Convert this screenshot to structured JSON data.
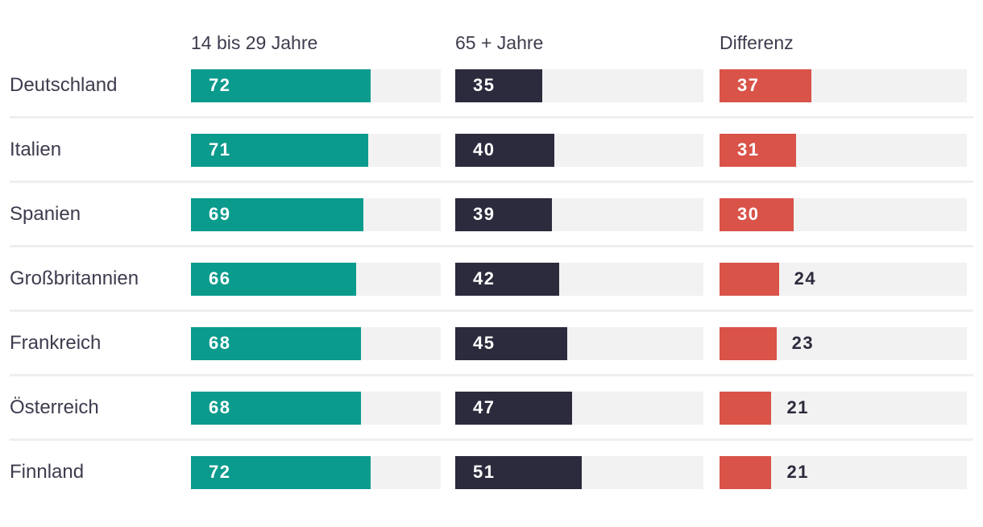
{
  "chart_data": {
    "type": "bar",
    "orientation": "horizontal",
    "title": "",
    "categories": [
      "Deutschland",
      "Italien",
      "Spanien",
      "Großbritannien",
      "Frankreich",
      "Österreich",
      "Finnland"
    ],
    "series": [
      {
        "name": "14 bis 29 Jahre",
        "color": "#0a9b8d",
        "values": [
          72,
          71,
          69,
          66,
          68,
          68,
          72
        ]
      },
      {
        "name": "65 + Jahre",
        "color": "#2b2b3d",
        "values": [
          35,
          40,
          39,
          42,
          45,
          47,
          51
        ]
      },
      {
        "name": "Differenz",
        "color": "#d95349",
        "values": [
          37,
          31,
          30,
          24,
          23,
          21,
          21
        ]
      }
    ],
    "xlim": [
      0,
      100
    ],
    "value_labels_shown": true,
    "value_label_inside_threshold": 30,
    "grid": false,
    "legend_position": "top-as-column-headers"
  },
  "colors": {
    "track": "#f2f2f2",
    "separator": "#efefef",
    "text": "#3c3c4e",
    "value_inside": "#ffffff",
    "value_outside": "#2b2b3d",
    "background": "#ffffff"
  }
}
